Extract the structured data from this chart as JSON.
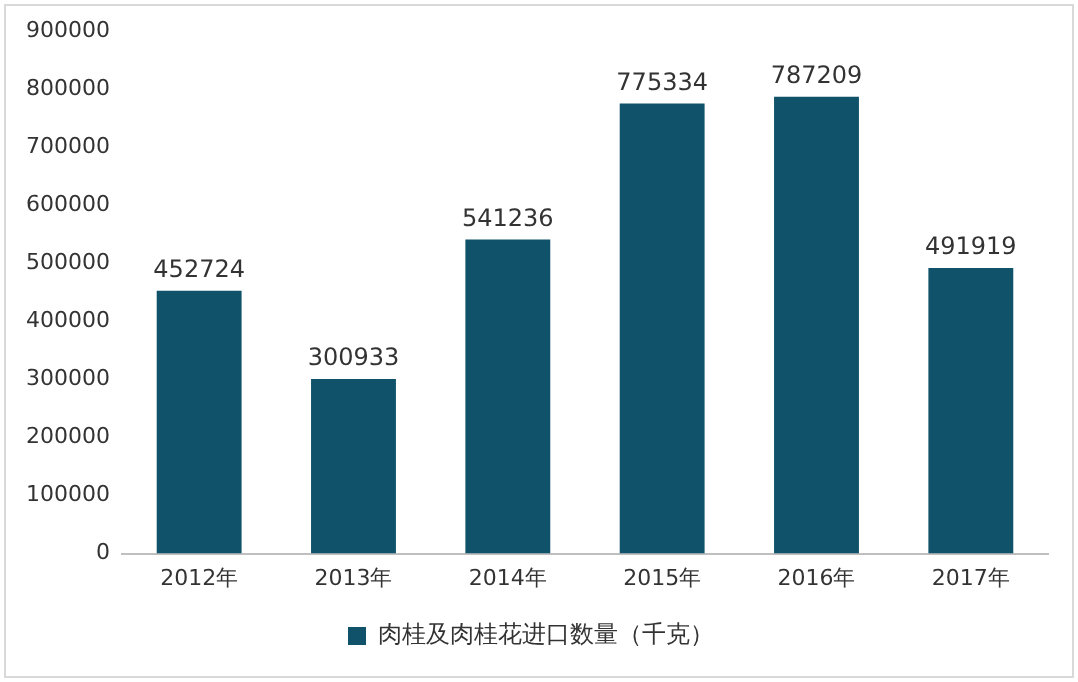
{
  "chart_data": {
    "type": "bar",
    "categories": [
      "2012年",
      "2013年",
      "2014年",
      "2015年",
      "2016年",
      "2017年"
    ],
    "series": [
      {
        "name": "肉桂及肉桂花进口数量（千克）",
        "color": "#0f5269",
        "values": [
          452724,
          300933,
          541236,
          775334,
          787209,
          491919
        ]
      }
    ],
    "ylim": [
      0,
      900000
    ],
    "yticks": [
      0,
      100000,
      200000,
      300000,
      400000,
      500000,
      600000,
      700000,
      800000,
      900000
    ],
    "grid": false,
    "legend": "bottom",
    "data_labels": true
  }
}
